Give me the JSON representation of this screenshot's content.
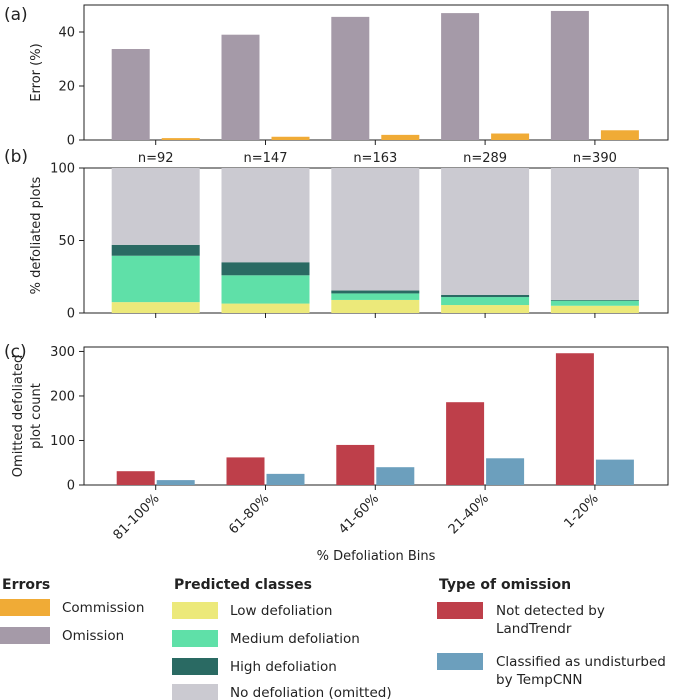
{
  "chart_data": [
    {
      "panel_label": "(a)",
      "type": "bar",
      "ylabel": "Error (%)",
      "ylim": [
        0,
        50
      ],
      "yticks": [
        0,
        20,
        40
      ],
      "categories": [
        "81-100%",
        "61-80%",
        "41-60%",
        "21-40%",
        "1-20%"
      ],
      "series": [
        {
          "name": "Omission",
          "color": "#a59aa8",
          "values": [
            33.7,
            39.0,
            45.6,
            47.0,
            47.8
          ]
        },
        {
          "name": "Commission",
          "color": "#f0ab36",
          "values": [
            0.7,
            1.2,
            1.9,
            2.4,
            3.6
          ]
        }
      ]
    },
    {
      "panel_label": "(b)",
      "type": "bar",
      "stacked": true,
      "ylabel": "% defoliated plots",
      "ylim": [
        0,
        100
      ],
      "yticks": [
        0,
        50,
        100
      ],
      "categories": [
        "81-100%",
        "61-80%",
        "41-60%",
        "21-40%",
        "1-20%"
      ],
      "annotations": [
        "n=92",
        "n=147",
        "n=163",
        "n=289",
        "n=390"
      ],
      "series": [
        {
          "name": "Low defoliation",
          "color": "#ece97a",
          "values": [
            7.5,
            6.5,
            9.0,
            5.5,
            5.0
          ]
        },
        {
          "name": "Medium defoliation",
          "color": "#5fe0a8",
          "values": [
            32.0,
            19.5,
            4.5,
            5.5,
            3.5
          ]
        },
        {
          "name": "High defoliation",
          "color": "#2a6a63",
          "values": [
            7.5,
            9.0,
            2.0,
            1.5,
            0.5
          ]
        },
        {
          "name": "No defoliation (omitted)",
          "color": "#cbcad1",
          "values": [
            53.0,
            65.0,
            84.5,
            87.5,
            91.0
          ]
        }
      ]
    },
    {
      "panel_label": "(c)",
      "type": "bar",
      "ylabel_lines": [
        "Omitted defoliated",
        "plot count"
      ],
      "xlabel": "% Defoliation Bins",
      "ylim": [
        0,
        310
      ],
      "yticks": [
        0,
        100,
        200,
        300
      ],
      "categories": [
        "81-100%",
        "61-80%",
        "41-60%",
        "21-40%",
        "1-20%"
      ],
      "series": [
        {
          "name": "Not detected by LandTrendr",
          "color": "#be3f4a",
          "values": [
            31,
            62,
            90,
            186,
            296
          ]
        },
        {
          "name": "Classified as undisturbed by TempCNN",
          "color": "#6c9fbd",
          "values": [
            11,
            25,
            40,
            60,
            57
          ]
        }
      ]
    }
  ],
  "legend": [
    {
      "title": "Errors",
      "items": [
        {
          "lines": [
            "Commission"
          ],
          "color": "#f0ab36"
        },
        {
          "lines": [
            "Omission"
          ],
          "color": "#a59aa8"
        }
      ]
    },
    {
      "title": "Predicted classes",
      "items": [
        {
          "lines": [
            "Low defoliation"
          ],
          "color": "#ece97a"
        },
        {
          "lines": [
            "Medium defoliation"
          ],
          "color": "#5fe0a8"
        },
        {
          "lines": [
            "High defoliation"
          ],
          "color": "#2a6a63"
        },
        {
          "lines": [
            "No defoliation (omitted)"
          ],
          "color": "#cbcad1"
        }
      ]
    },
    {
      "title": "Type of omission",
      "items": [
        {
          "lines": [
            "Not detected by",
            "LandTrendr"
          ],
          "color": "#be3f4a"
        },
        {
          "lines": [
            "Classified as undisturbed",
            "by TempCNN"
          ],
          "color": "#6c9fbd"
        }
      ]
    }
  ]
}
